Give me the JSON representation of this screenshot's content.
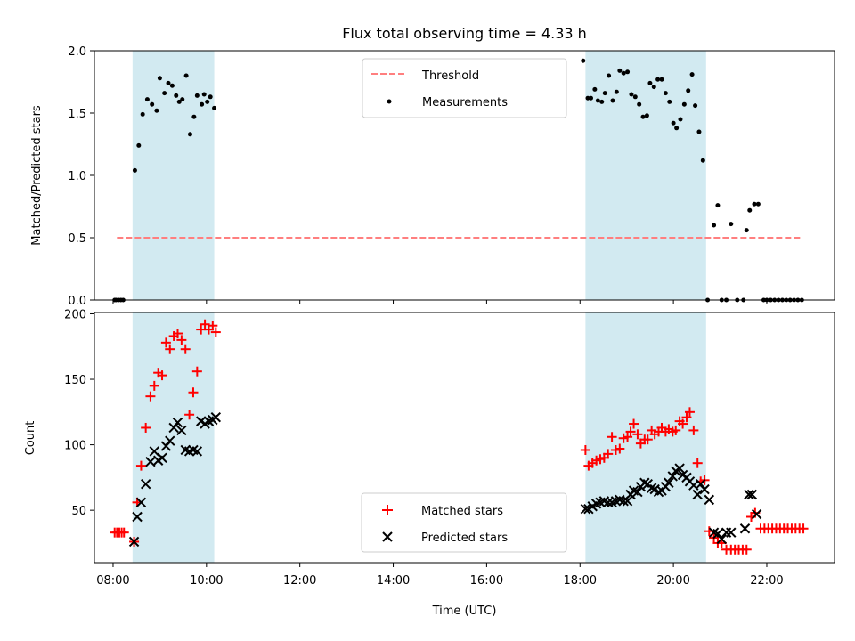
{
  "chart_data": [
    {
      "type": "scatter",
      "title": "Flux total observing time = 4.33 h",
      "xlabel": "",
      "ylabel": "Matched/Predicted stars",
      "xlim": [
        "07:36",
        "23:27"
      ],
      "ylim": [
        0,
        2.0
      ],
      "yticks": [
        0.0,
        0.5,
        1.0,
        1.5,
        2.0
      ],
      "xticks": [
        "08:00",
        "10:00",
        "12:00",
        "14:00",
        "16:00",
        "18:00",
        "20:00",
        "22:00"
      ],
      "grid": false,
      "legend_position": "top-center",
      "shaded_intervals": [
        [
          "08:25",
          "10:10"
        ],
        [
          "18:07",
          "20:42"
        ]
      ],
      "shade_color": "#add8e6",
      "threshold": {
        "name": "Threshold",
        "value": 0.5,
        "x_range": [
          "08:05",
          "22:45"
        ],
        "color": "#ff7f7f"
      },
      "series": [
        {
          "name": "Measurements",
          "color": "#000000",
          "points": [
            [
              "08:02",
              0
            ],
            [
              "08:04",
              0
            ],
            [
              "08:07",
              0
            ],
            [
              "08:10",
              0
            ],
            [
              "08:13",
              0
            ],
            [
              "08:28",
              1.04
            ],
            [
              "08:33",
              1.24
            ],
            [
              "08:38",
              1.49
            ],
            [
              "08:44",
              1.61
            ],
            [
              "08:50",
              1.57
            ],
            [
              "08:56",
              1.52
            ],
            [
              "09:00",
              1.78
            ],
            [
              "09:06",
              1.66
            ],
            [
              "09:11",
              1.74
            ],
            [
              "09:16",
              1.72
            ],
            [
              "09:21",
              1.64
            ],
            [
              "09:25",
              1.59
            ],
            [
              "09:29",
              1.61
            ],
            [
              "09:34",
              1.8
            ],
            [
              "09:39",
              1.33
            ],
            [
              "09:44",
              1.47
            ],
            [
              "09:48",
              1.64
            ],
            [
              "09:54",
              1.57
            ],
            [
              "09:57",
              1.65
            ],
            [
              "10:01",
              1.59
            ],
            [
              "10:05",
              1.63
            ],
            [
              "10:10",
              1.54
            ],
            [
              "18:04",
              1.92
            ],
            [
              "18:10",
              1.62
            ],
            [
              "18:14",
              1.62
            ],
            [
              "18:19",
              1.69
            ],
            [
              "18:23",
              1.6
            ],
            [
              "18:28",
              1.59
            ],
            [
              "18:32",
              1.66
            ],
            [
              "18:37",
              1.8
            ],
            [
              "18:42",
              1.6
            ],
            [
              "18:47",
              1.67
            ],
            [
              "18:51",
              1.84
            ],
            [
              "18:56",
              1.82
            ],
            [
              "19:01",
              1.83
            ],
            [
              "19:06",
              1.65
            ],
            [
              "19:11",
              1.63
            ],
            [
              "19:16",
              1.57
            ],
            [
              "19:21",
              1.47
            ],
            [
              "19:26",
              1.48
            ],
            [
              "19:30",
              1.74
            ],
            [
              "19:35",
              1.71
            ],
            [
              "19:40",
              1.77
            ],
            [
              "19:45",
              1.77
            ],
            [
              "19:50",
              1.66
            ],
            [
              "19:55",
              1.59
            ],
            [
              "20:00",
              1.42
            ],
            [
              "20:04",
              1.38
            ],
            [
              "20:09",
              1.45
            ],
            [
              "20:14",
              1.57
            ],
            [
              "20:19",
              1.68
            ],
            [
              "20:24",
              1.81
            ],
            [
              "20:28",
              1.56
            ],
            [
              "20:33",
              1.35
            ],
            [
              "20:38",
              1.12
            ],
            [
              "20:44",
              0
            ],
            [
              "20:52",
              0.6
            ],
            [
              "20:57",
              0.76
            ],
            [
              "21:02",
              0
            ],
            [
              "21:08",
              0
            ],
            [
              "21:14",
              0.61
            ],
            [
              "21:22",
              0
            ],
            [
              "21:30",
              0
            ],
            [
              "21:34",
              0.56
            ],
            [
              "21:38",
              0.72
            ],
            [
              "21:44",
              0.77
            ],
            [
              "21:49",
              0.77
            ],
            [
              "21:56",
              0
            ],
            [
              "22:00",
              0
            ],
            [
              "22:05",
              0
            ],
            [
              "22:10",
              0
            ],
            [
              "22:15",
              0
            ],
            [
              "22:20",
              0
            ],
            [
              "22:25",
              0
            ],
            [
              "22:30",
              0
            ],
            [
              "22:35",
              0
            ],
            [
              "22:40",
              0
            ],
            [
              "22:45",
              0
            ]
          ]
        }
      ]
    },
    {
      "type": "scatter",
      "title": "",
      "xlabel": "Time (UTC)",
      "ylabel": "Count",
      "xlim": [
        "07:36",
        "23:27"
      ],
      "ylim": [
        10,
        201
      ],
      "yticks": [
        50,
        100,
        150,
        200
      ],
      "xticks": [
        "08:00",
        "10:00",
        "12:00",
        "14:00",
        "16:00",
        "18:00",
        "20:00",
        "22:00"
      ],
      "grid": false,
      "legend_position": "bottom-center",
      "shaded_intervals": [
        [
          "08:25",
          "10:10"
        ],
        [
          "18:07",
          "20:42"
        ]
      ],
      "shade_color": "#add8e6",
      "series": [
        {
          "name": "Matched stars",
          "marker": "+",
          "color": "#ff0000",
          "points": [
            [
              "08:02",
              33
            ],
            [
              "08:05",
              33
            ],
            [
              "08:08",
              33
            ],
            [
              "08:11",
              33
            ],
            [
              "08:14",
              33
            ],
            [
              "08:27",
              26
            ],
            [
              "08:31",
              56
            ],
            [
              "08:36",
              84
            ],
            [
              "08:42",
              113
            ],
            [
              "08:48",
              137
            ],
            [
              "08:53",
              145
            ],
            [
              "08:58",
              155
            ],
            [
              "09:03",
              153
            ],
            [
              "09:08",
              178
            ],
            [
              "09:13",
              173
            ],
            [
              "09:18",
              183
            ],
            [
              "09:23",
              185
            ],
            [
              "09:28",
              180
            ],
            [
              "09:33",
              173
            ],
            [
              "09:38",
              123
            ],
            [
              "09:43",
              140
            ],
            [
              "09:48",
              156
            ],
            [
              "09:53",
              188
            ],
            [
              "09:58",
              192
            ],
            [
              "10:03",
              188
            ],
            [
              "10:08",
              191
            ],
            [
              "10:12",
              186
            ],
            [
              "18:07",
              96
            ],
            [
              "18:11",
              84
            ],
            [
              "18:16",
              86
            ],
            [
              "18:21",
              88
            ],
            [
              "18:26",
              89
            ],
            [
              "18:31",
              90
            ],
            [
              "18:36",
              93
            ],
            [
              "18:41",
              106
            ],
            [
              "18:46",
              96
            ],
            [
              "18:51",
              97
            ],
            [
              "18:56",
              105
            ],
            [
              "19:01",
              106
            ],
            [
              "19:05",
              110
            ],
            [
              "19:09",
              116
            ],
            [
              "19:14",
              108
            ],
            [
              "19:18",
              101
            ],
            [
              "19:23",
              104
            ],
            [
              "19:27",
              104
            ],
            [
              "19:32",
              111
            ],
            [
              "19:36",
              108
            ],
            [
              "19:41",
              110
            ],
            [
              "19:45",
              113
            ],
            [
              "19:50",
              110
            ],
            [
              "19:54",
              112
            ],
            [
              "19:59",
              110
            ],
            [
              "20:03",
              111
            ],
            [
              "20:08",
              118
            ],
            [
              "20:12",
              116
            ],
            [
              "20:17",
              121
            ],
            [
              "20:21",
              125
            ],
            [
              "20:26",
              111
            ],
            [
              "20:31",
              86
            ],
            [
              "20:35",
              72
            ],
            [
              "20:40",
              73
            ],
            [
              "20:46",
              34
            ],
            [
              "20:52",
              29
            ],
            [
              "20:57",
              25
            ],
            [
              "21:02",
              25
            ],
            [
              "21:08",
              20
            ],
            [
              "21:14",
              20
            ],
            [
              "21:19",
              20
            ],
            [
              "21:24",
              20
            ],
            [
              "21:29",
              20
            ],
            [
              "21:34",
              20
            ],
            [
              "21:40",
              45
            ],
            [
              "21:45",
              48
            ],
            [
              "21:52",
              36
            ],
            [
              "21:57",
              36
            ],
            [
              "22:02",
              36
            ],
            [
              "22:07",
              36
            ],
            [
              "22:12",
              36
            ],
            [
              "22:17",
              36
            ],
            [
              "22:22",
              36
            ],
            [
              "22:27",
              36
            ],
            [
              "22:32",
              36
            ],
            [
              "22:37",
              36
            ],
            [
              "22:42",
              36
            ],
            [
              "22:47",
              36
            ]
          ]
        },
        {
          "name": "Predicted stars",
          "marker": "x",
          "color": "#000000",
          "points": [
            [
              "08:27",
              26
            ],
            [
              "08:31",
              45
            ],
            [
              "08:36",
              56
            ],
            [
              "08:42",
              70
            ],
            [
              "08:48",
              87
            ],
            [
              "08:53",
              95
            ],
            [
              "08:58",
              88
            ],
            [
              "09:03",
              90
            ],
            [
              "09:08",
              99
            ],
            [
              "09:13",
              103
            ],
            [
              "09:18",
              113
            ],
            [
              "09:23",
              117
            ],
            [
              "09:28",
              111
            ],
            [
              "09:33",
              96
            ],
            [
              "09:38",
              95
            ],
            [
              "09:43",
              96
            ],
            [
              "09:48",
              95
            ],
            [
              "09:53",
              118
            ],
            [
              "09:58",
              116
            ],
            [
              "10:03",
              118
            ],
            [
              "10:08",
              119
            ],
            [
              "10:12",
              121
            ],
            [
              "18:07",
              51
            ],
            [
              "18:11",
              51
            ],
            [
              "18:16",
              53
            ],
            [
              "18:21",
              55
            ],
            [
              "18:26",
              56
            ],
            [
              "18:31",
              57
            ],
            [
              "18:36",
              56
            ],
            [
              "18:41",
              56
            ],
            [
              "18:46",
              57
            ],
            [
              "18:51",
              58
            ],
            [
              "18:56",
              57
            ],
            [
              "19:01",
              57
            ],
            [
              "19:05",
              62
            ],
            [
              "19:09",
              65
            ],
            [
              "19:14",
              64
            ],
            [
              "19:18",
              68
            ],
            [
              "19:23",
              71
            ],
            [
              "19:27",
              70
            ],
            [
              "19:32",
              67
            ],
            [
              "19:36",
              66
            ],
            [
              "19:41",
              64
            ],
            [
              "19:45",
              65
            ],
            [
              "19:50",
              68
            ],
            [
              "19:54",
              71
            ],
            [
              "19:59",
              76
            ],
            [
              "20:03",
              80
            ],
            [
              "20:08",
              82
            ],
            [
              "20:12",
              77
            ],
            [
              "20:17",
              75
            ],
            [
              "20:21",
              72
            ],
            [
              "20:26",
              69
            ],
            [
              "20:31",
              62
            ],
            [
              "20:35",
              70
            ],
            [
              "20:40",
              66
            ],
            [
              "20:46",
              58
            ],
            [
              "20:52",
              33
            ],
            [
              "20:57",
              32
            ],
            [
              "21:02",
              28
            ],
            [
              "21:08",
              33
            ],
            [
              "21:14",
              33
            ],
            [
              "21:32",
              36
            ],
            [
              "21:37",
              62
            ],
            [
              "21:41",
              62
            ],
            [
              "21:47",
              47
            ]
          ]
        }
      ]
    }
  ]
}
